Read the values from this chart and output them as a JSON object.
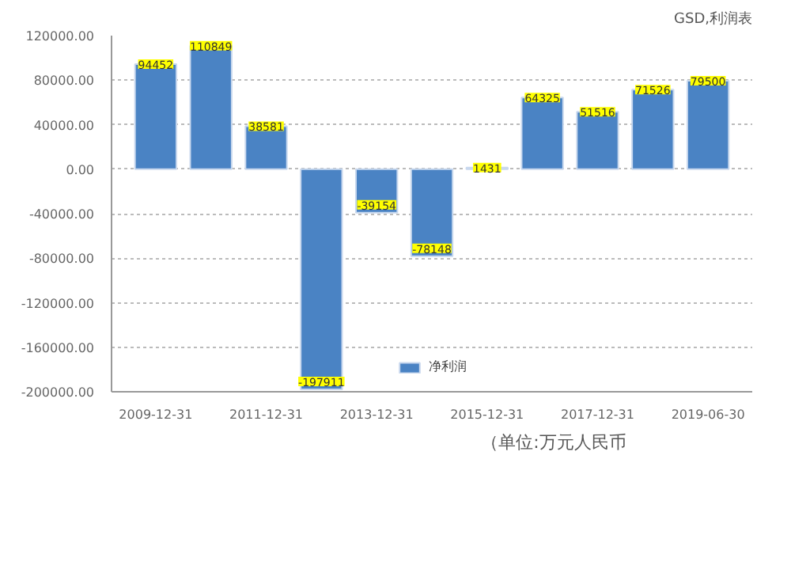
{
  "chart_data": {
    "type": "bar",
    "title": "GSD,利润表",
    "categories": [
      "2009-12-31",
      null,
      "2011-12-31",
      null,
      "2013-12-31",
      null,
      "2015-12-31",
      null,
      "2017-12-31",
      null,
      "2019-06-30"
    ],
    "series": [
      {
        "name": "净利润",
        "color": "#4a83c4",
        "values": [
          94452,
          110849,
          38581,
          -197911,
          -39154,
          -78148,
          1431,
          64325,
          51516,
          71526,
          79500
        ]
      }
    ],
    "data_labels": true,
    "ylim": [
      -200000,
      120000
    ],
    "yticks": [
      {
        "value": -200000,
        "label": "-200000.00"
      },
      {
        "value": -160000,
        "label": "-160000.00"
      },
      {
        "value": -120000,
        "label": "-120000.00"
      },
      {
        "value": -80000,
        "label": "-80000.00"
      },
      {
        "value": -40000,
        "label": "-40000.00"
      },
      {
        "value": 0,
        "label": "0.00"
      },
      {
        "value": 40000,
        "label": "40000.00"
      },
      {
        "value": 80000,
        "label": "80000.00"
      },
      {
        "value": 120000,
        "label": "120000.00"
      }
    ],
    "grid": "y",
    "legend": "bottom",
    "annotations": [
      "（单位:万元人民币"
    ]
  }
}
